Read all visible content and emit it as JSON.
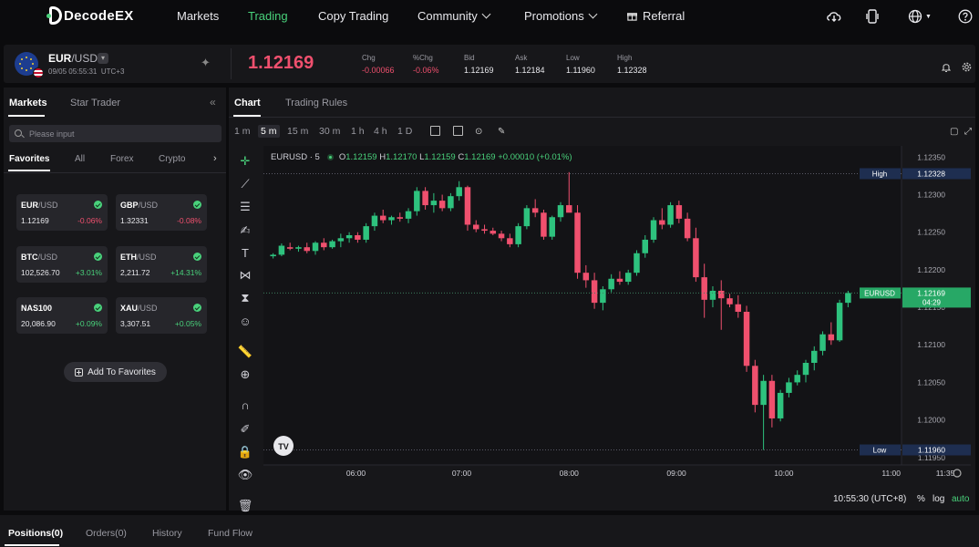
{
  "brand": {
    "name": "DecodeEX"
  },
  "nav": {
    "items": [
      {
        "label": "Markets",
        "active": false
      },
      {
        "label": "Trading",
        "active": true
      },
      {
        "label": "Copy Trading",
        "active": false
      },
      {
        "label": "Community",
        "active": false
      },
      {
        "label": "Promotions",
        "active": false
      },
      {
        "label": "Referral",
        "active": false
      }
    ]
  },
  "ticker": {
    "base": "EUR",
    "quote": "/USD",
    "datetime": "09/05 05:55:31",
    "timezone": "UTC+3",
    "price": "1.12169",
    "stats": [
      {
        "label": "Chg",
        "value": "-0.00066",
        "tone": "red"
      },
      {
        "label": "%Chg",
        "value": "-0.06%",
        "tone": "red"
      },
      {
        "label": "Bid",
        "value": "1.12169",
        "tone": ""
      },
      {
        "label": "Ask",
        "value": "1.12184",
        "tone": ""
      },
      {
        "label": "Low",
        "value": "1.11960",
        "tone": ""
      },
      {
        "label": "High",
        "value": "1.12328",
        "tone": ""
      }
    ]
  },
  "markets": {
    "tabs": [
      "Markets",
      "Star Trader"
    ],
    "search_placeholder": "Please input",
    "filters": [
      "Favorites",
      "All",
      "Forex",
      "Crypto"
    ],
    "cards": [
      {
        "base": "EUR",
        "quote": "/USD",
        "price": "1.12169",
        "change": "-0.06%",
        "dir": "neg"
      },
      {
        "base": "GBP",
        "quote": "/USD",
        "price": "1.32331",
        "change": "-0.08%",
        "dir": "neg"
      },
      {
        "base": "BTC",
        "quote": "/USD",
        "price": "102,526.70",
        "change": "+3.01%",
        "dir": "pos"
      },
      {
        "base": "ETH",
        "quote": "/USD",
        "price": "2,211.72",
        "change": "+14.31%",
        "dir": "pos"
      },
      {
        "base": "NAS100",
        "quote": "",
        "price": "20,086.90",
        "change": "+0.09%",
        "dir": "pos"
      },
      {
        "base": "XAU",
        "quote": "/USD",
        "price": "3,307.51",
        "change": "+0.05%",
        "dir": "pos"
      }
    ],
    "add_favorites": "Add To Favorites"
  },
  "chart_panel": {
    "tabs": [
      "Chart",
      "Trading Rules"
    ],
    "timeframes": [
      "1 m",
      "5 m",
      "15 m",
      "30 m",
      "1 h",
      "4 h",
      "1 D"
    ],
    "active_timeframe": "5 m",
    "symbol_label": "EURUSD · 5",
    "ohlc": {
      "o": "1.12159",
      "h": "1.12170",
      "l": "1.12159",
      "c": "1.12169",
      "chg": "+0.00010 (+0.01%)"
    },
    "clock": "10:55:30 (UTC+8)",
    "scale_options": [
      "%",
      "log",
      "auto"
    ],
    "tv_logo": "TV"
  },
  "chart_data": {
    "type": "candlestick",
    "y_ticks": [
      "1.12350",
      "1.12300",
      "1.12250",
      "1.12200",
      "1.12150",
      "1.12100",
      "1.12050",
      "1.12000",
      "1.11950"
    ],
    "x_ticks": [
      "5:00",
      "06:00",
      "07:00",
      "08:00",
      "09:00",
      "10:00",
      "11:00",
      "11:35"
    ],
    "ylim": [
      1.1194,
      1.12365
    ],
    "markers": [
      {
        "label": "High",
        "value": "1.12328",
        "price": 1.12328
      },
      {
        "label": "EURUSD",
        "value": "1.12169",
        "price": 1.12169,
        "countdown": "04:29"
      },
      {
        "label": "Low",
        "value": "1.11960",
        "price": 1.1196
      }
    ],
    "candles": [
      [
        1.12218,
        1.12222,
        1.12215,
        1.1222
      ],
      [
        1.1222,
        1.12235,
        1.12218,
        1.12232
      ],
      [
        1.1223,
        1.12236,
        1.12226,
        1.12228
      ],
      [
        1.12228,
        1.12232,
        1.12224,
        1.1223
      ],
      [
        1.1223,
        1.12236,
        1.12222,
        1.12225
      ],
      [
        1.12225,
        1.12238,
        1.1222,
        1.12236
      ],
      [
        1.12236,
        1.12242,
        1.12226,
        1.1223
      ],
      [
        1.1223,
        1.1224,
        1.12228,
        1.12238
      ],
      [
        1.12238,
        1.12248,
        1.1223,
        1.12242
      ],
      [
        1.12242,
        1.1225,
        1.12236,
        1.12246
      ],
      [
        1.12246,
        1.1225,
        1.12236,
        1.1224
      ],
      [
        1.1224,
        1.12262,
        1.12236,
        1.12258
      ],
      [
        1.12258,
        1.12276,
        1.12252,
        1.12272
      ],
      [
        1.12272,
        1.1228,
        1.12262,
        1.12266
      ],
      [
        1.12266,
        1.12272,
        1.1226,
        1.1227
      ],
      [
        1.1227,
        1.12276,
        1.12264,
        1.12268
      ],
      [
        1.12268,
        1.12282,
        1.12262,
        1.12278
      ],
      [
        1.12278,
        1.1231,
        1.12272,
        1.12305
      ],
      [
        1.12305,
        1.1231,
        1.1228,
        1.12286
      ],
      [
        1.12286,
        1.12302,
        1.12276,
        1.12292
      ],
      [
        1.12292,
        1.123,
        1.12278,
        1.12282
      ],
      [
        1.12282,
        1.12302,
        1.12278,
        1.12298
      ],
      [
        1.12298,
        1.12318,
        1.12292,
        1.1231
      ],
      [
        1.1231,
        1.12312,
        1.12252,
        1.1226
      ],
      [
        1.1226,
        1.12266,
        1.1225,
        1.12254
      ],
      [
        1.12254,
        1.1226,
        1.12248,
        1.12252
      ],
      [
        1.12252,
        1.12256,
        1.12246,
        1.12248
      ],
      [
        1.12248,
        1.12252,
        1.12238,
        1.12242
      ],
      [
        1.12242,
        1.12248,
        1.1223,
        1.12234
      ],
      [
        1.12234,
        1.12262,
        1.1223,
        1.12258
      ],
      [
        1.12258,
        1.12286,
        1.12254,
        1.12282
      ],
      [
        1.12282,
        1.12294,
        1.1227,
        1.12276
      ],
      [
        1.12276,
        1.1228,
        1.1224,
        1.12244
      ],
      [
        1.12244,
        1.12272,
        1.1224,
        1.1227
      ],
      [
        1.1227,
        1.1229,
        1.12264,
        1.12286
      ],
      [
        1.12286,
        1.1233,
        1.1228,
        1.12276
      ],
      [
        1.12276,
        1.12286,
        1.12188,
        1.12196
      ],
      [
        1.12196,
        1.12206,
        1.12176,
        1.12186
      ],
      [
        1.12186,
        1.12196,
        1.12148,
        1.12156
      ],
      [
        1.12156,
        1.12178,
        1.12146,
        1.12174
      ],
      [
        1.12174,
        1.12194,
        1.1217,
        1.12188
      ],
      [
        1.12188,
        1.12198,
        1.1218,
        1.12184
      ],
      [
        1.12184,
        1.122,
        1.1218,
        1.12196
      ],
      [
        1.12196,
        1.12226,
        1.12192,
        1.12222
      ],
      [
        1.12222,
        1.12246,
        1.12216,
        1.1224
      ],
      [
        1.1224,
        1.1227,
        1.12236,
        1.12266
      ],
      [
        1.12266,
        1.12282,
        1.12254,
        1.1226
      ],
      [
        1.1226,
        1.1229,
        1.12256,
        1.12286
      ],
      [
        1.12286,
        1.12292,
        1.12262,
        1.12268
      ],
      [
        1.12268,
        1.12276,
        1.12238,
        1.12242
      ],
      [
        1.12242,
        1.12256,
        1.12184,
        1.1219
      ],
      [
        1.1219,
        1.12208,
        1.12136,
        1.1216
      ],
      [
        1.1216,
        1.12178,
        1.1215,
        1.12172
      ],
      [
        1.12172,
        1.12186,
        1.1212,
        1.12162
      ],
      [
        1.12162,
        1.12168,
        1.1215,
        1.12154
      ],
      [
        1.12154,
        1.12166,
        1.12136,
        1.12144
      ],
      [
        1.12144,
        1.12152,
        1.12064,
        1.12072
      ],
      [
        1.12072,
        1.1208,
        1.1201,
        1.1202
      ],
      [
        1.1202,
        1.1206,
        1.1196,
        1.12052
      ],
      [
        1.12052,
        1.1206,
        1.1199,
        1.12002
      ],
      [
        1.12002,
        1.1204,
        1.11998,
        1.12036
      ],
      [
        1.12036,
        1.12056,
        1.1203,
        1.1205
      ],
      [
        1.1205,
        1.12066,
        1.12046,
        1.1206
      ],
      [
        1.1206,
        1.1208,
        1.1205,
        1.12076
      ],
      [
        1.12076,
        1.12098,
        1.12066,
        1.12092
      ],
      [
        1.12092,
        1.12118,
        1.12086,
        1.12114
      ],
      [
        1.12114,
        1.1213,
        1.121,
        1.12106
      ],
      [
        1.12106,
        1.1216,
        1.12104,
        1.12156
      ],
      [
        1.12156,
        1.12172,
        1.1215,
        1.12169
      ]
    ]
  },
  "bottom": {
    "tabs": [
      "Positions(0)",
      "Orders(0)",
      "History",
      "Fund Flow"
    ]
  }
}
